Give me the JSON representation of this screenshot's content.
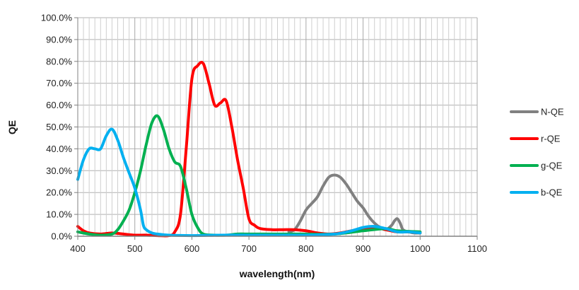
{
  "chart_data": {
    "type": "line",
    "title": "",
    "xlabel": "wavelength(nm)",
    "ylabel": "QE",
    "xlim": [
      400,
      1100
    ],
    "ylim": [
      0,
      100
    ],
    "x_ticks": [
      400,
      500,
      600,
      700,
      800,
      900,
      1000,
      1100
    ],
    "x_tick_labels": [
      "400",
      "500",
      "600",
      "700",
      "800",
      "900",
      "1000",
      "1100"
    ],
    "y_ticks": [
      0,
      10,
      20,
      30,
      40,
      50,
      60,
      70,
      80,
      90,
      100
    ],
    "y_tick_labels": [
      "0.0%",
      "10.0%",
      "20.0%",
      "30.0%",
      "40.0%",
      "50.0%",
      "60.0%",
      "70.0%",
      "80.0%",
      "90.0%",
      "100.0%"
    ],
    "grid": true,
    "legend_position": "right",
    "series": [
      {
        "name": "N-QE",
        "color": "#808080",
        "x": [
          770,
          780,
          790,
          800,
          810,
          820,
          830,
          840,
          850,
          860,
          870,
          880,
          890,
          900,
          910,
          920,
          930,
          940,
          950,
          955,
          960,
          965,
          970,
          980,
          990,
          1000
        ],
        "y": [
          2.0,
          3.0,
          7.0,
          12.0,
          15.0,
          18.0,
          23.0,
          27.0,
          28.0,
          27.0,
          24.0,
          20.0,
          16.0,
          13.0,
          9.0,
          6.0,
          4.0,
          3.0,
          5.0,
          7.0,
          8.0,
          6.0,
          3.0,
          2.0,
          1.5,
          1.5
        ]
      },
      {
        "name": "r-QE",
        "color": "#ff0000",
        "x": [
          400,
          410,
          420,
          440,
          460,
          480,
          500,
          520,
          540,
          560,
          570,
          580,
          590,
          600,
          610,
          620,
          630,
          640,
          650,
          660,
          670,
          680,
          690,
          700,
          710,
          720,
          740,
          760,
          780,
          800,
          820,
          840,
          860,
          880,
          900,
          920,
          940,
          960,
          980,
          1000
        ],
        "y": [
          4.5,
          2.5,
          1.5,
          1.0,
          1.5,
          1.0,
          0.5,
          0.5,
          0.3,
          0.3,
          2.0,
          10.0,
          40.0,
          72.0,
          78.0,
          79.0,
          70.0,
          60.0,
          61.0,
          62.0,
          50.0,
          35.0,
          22.0,
          8.0,
          5.0,
          3.5,
          3.0,
          3.0,
          3.0,
          2.5,
          1.5,
          1.0,
          1.5,
          2.5,
          3.5,
          4.0,
          3.0,
          2.0,
          2.0,
          1.5
        ]
      },
      {
        "name": "g-QE",
        "color": "#00b050",
        "x": [
          400,
          420,
          440,
          460,
          470,
          480,
          490,
          500,
          510,
          520,
          530,
          540,
          550,
          560,
          570,
          580,
          590,
          600,
          610,
          620,
          640,
          660,
          680,
          700,
          720,
          760,
          800,
          850,
          900,
          940,
          960,
          1000
        ],
        "y": [
          2.0,
          1.0,
          0.5,
          1.0,
          3.0,
          7.0,
          12.0,
          20.0,
          30.0,
          42.0,
          52.0,
          55.0,
          49.0,
          40.0,
          34.0,
          32.0,
          22.0,
          10.0,
          4.0,
          1.0,
          0.5,
          0.5,
          1.0,
          1.0,
          1.0,
          1.0,
          1.0,
          1.0,
          2.5,
          3.5,
          2.5,
          2.0
        ]
      },
      {
        "name": "b-QE",
        "color": "#00b0f0",
        "x": [
          400,
          410,
          420,
          430,
          440,
          450,
          460,
          470,
          480,
          490,
          500,
          510,
          515,
          520,
          530,
          540,
          560,
          600,
          650,
          700,
          750,
          800,
          850,
          880,
          900,
          920,
          940,
          960,
          980,
          1000
        ],
        "y": [
          26.0,
          35.0,
          40.0,
          40.0,
          40.0,
          46.0,
          49.0,
          44.0,
          36.0,
          29.0,
          22.0,
          12.0,
          5.0,
          3.0,
          1.5,
          1.0,
          0.5,
          0.3,
          0.5,
          0.5,
          0.5,
          0.5,
          1.0,
          2.5,
          4.0,
          4.5,
          3.5,
          2.0,
          2.0,
          1.5
        ]
      }
    ]
  }
}
